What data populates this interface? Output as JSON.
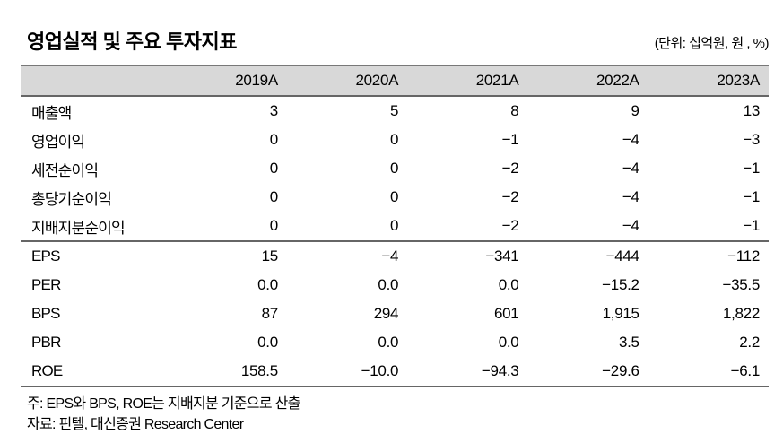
{
  "title": "영업실적 및 주요 투자지표",
  "unit_label": "(단위: 십억원, 원 , %)",
  "table": {
    "columns": [
      "",
      "2019A",
      "2020A",
      "2021A",
      "2022A",
      "2023A"
    ],
    "sections": [
      {
        "name": "operating-results",
        "rows": [
          {
            "label": "매출액",
            "values": [
              "3",
              "5",
              "8",
              "9",
              "13"
            ]
          },
          {
            "label": "영업이익",
            "values": [
              "0",
              "0",
              "−1",
              "−4",
              "−3"
            ]
          },
          {
            "label": "세전순이익",
            "values": [
              "0",
              "0",
              "−2",
              "−4",
              "−1"
            ]
          },
          {
            "label": "총당기순이익",
            "values": [
              "0",
              "0",
              "−2",
              "−4",
              "−1"
            ]
          },
          {
            "label": "지배지분순이익",
            "values": [
              "0",
              "0",
              "−2",
              "−4",
              "−1"
            ]
          }
        ]
      },
      {
        "name": "investment-indicators",
        "rows": [
          {
            "label": "EPS",
            "values": [
              "15",
              "−4",
              "−341",
              "−444",
              "−112"
            ]
          },
          {
            "label": "PER",
            "values": [
              "0.0",
              "0.0",
              "0.0",
              "−15.2",
              "−35.5"
            ]
          },
          {
            "label": "BPS",
            "values": [
              "87",
              "294",
              "601",
              "1,915",
              "1,822"
            ]
          },
          {
            "label": "PBR",
            "values": [
              "0.0",
              "0.0",
              "0.0",
              "3.5",
              "2.2"
            ]
          },
          {
            "label": "ROE",
            "values": [
              "158.5",
              "−10.0",
              "−94.3",
              "−29.6",
              "−6.1"
            ]
          }
        ]
      }
    ]
  },
  "notes": [
    "주: EPS와 BPS, ROE는 지배지분 기준으로 산출",
    "자료: 핀텔, 대신증권 Research Center"
  ],
  "colors": {
    "header_bg": "#d8d8d8",
    "rule_line": "#666666",
    "text": "#000000"
  }
}
